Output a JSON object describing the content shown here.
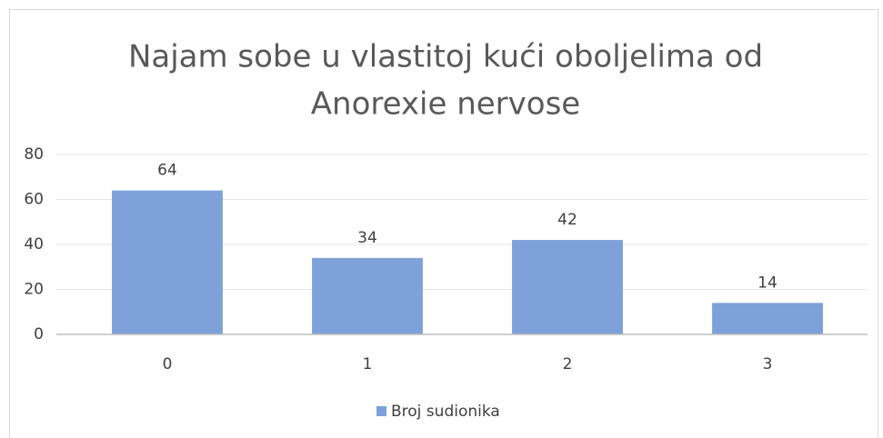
{
  "chart_data": {
    "type": "bar",
    "title": [
      "Najam sobe u vlastitoj kući oboljelima od",
      "Anorexie nervose"
    ],
    "categories": [
      "0",
      "1",
      "2",
      "3"
    ],
    "series": [
      {
        "name": "Broj sudionika",
        "color": "#7ea1d9",
        "values": [
          64,
          34,
          42,
          14
        ]
      }
    ],
    "ylim": [
      0,
      80
    ],
    "yticks": [
      0,
      20,
      40,
      60,
      80
    ],
    "grid": true,
    "data_labels": true,
    "legend": "bottom"
  }
}
